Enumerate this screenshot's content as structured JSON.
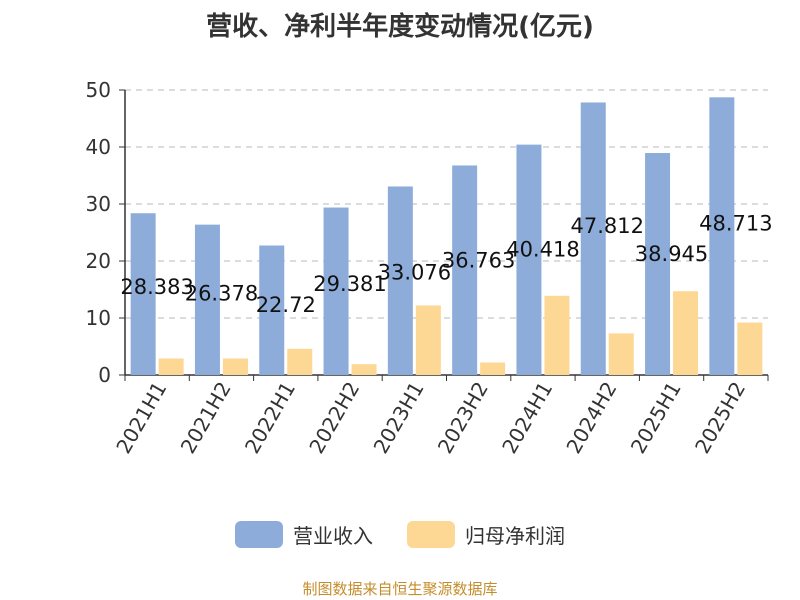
{
  "chart_data": {
    "type": "bar",
    "title": "营收、净利半年度变动情况(亿元)",
    "categories": [
      "2021H1",
      "2021H2",
      "2022H1",
      "2022H2",
      "2023H1",
      "2023H2",
      "2024H1",
      "2024H2",
      "2025H1",
      "2025H2"
    ],
    "series": [
      {
        "name": "营业收入",
        "color": "#8eacda",
        "values": [
          28.383,
          26.378,
          22.72,
          29.381,
          33.076,
          36.763,
          40.418,
          47.812,
          38.945,
          48.713
        ],
        "data_labels": [
          "28.383",
          "26.378",
          "22.72",
          "29.381",
          "33.076",
          "36.763",
          "40.418",
          "47.812",
          "38.945",
          "48.713"
        ]
      },
      {
        "name": "归母净利润",
        "color": "#fdd794",
        "values": [
          2.9,
          2.9,
          4.6,
          1.9,
          12.2,
          2.2,
          13.9,
          7.3,
          14.7,
          9.2
        ]
      }
    ],
    "ylim": [
      0,
      50
    ],
    "yticks": [
      0,
      10,
      20,
      30,
      40,
      50
    ],
    "grid": true,
    "legend_position": "bottom"
  },
  "source_note": "制图数据来自恒生聚源数据库"
}
